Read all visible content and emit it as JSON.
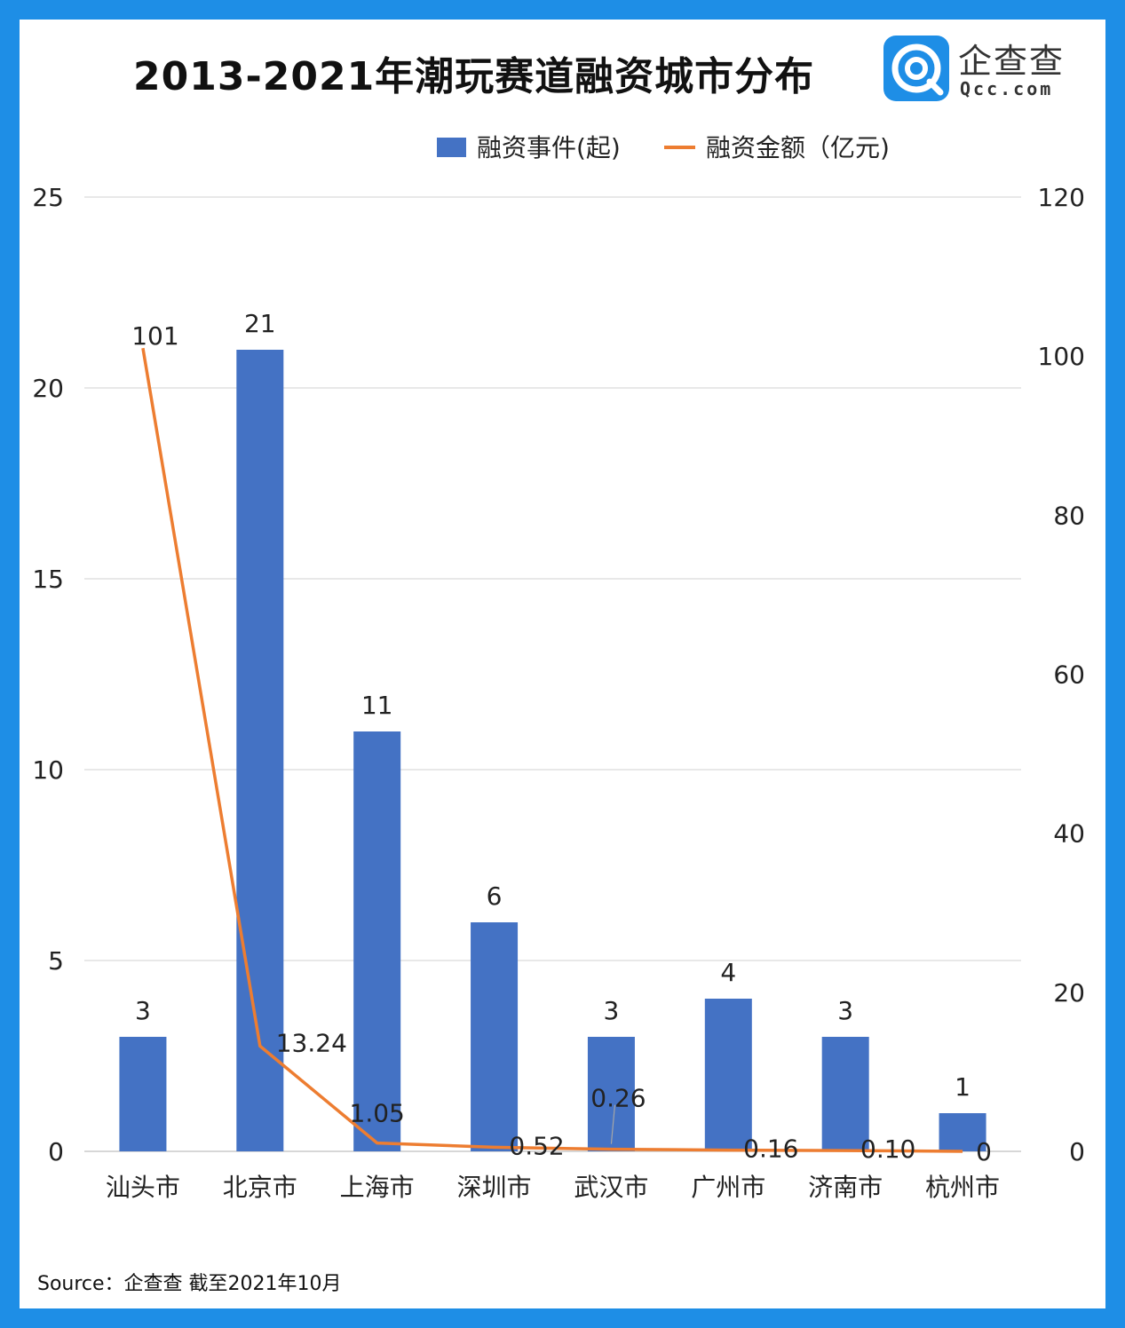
{
  "title": "2013-2021年潮玩赛道融资城市分布",
  "brand": {
    "name": "企查查",
    "domain": "Qcc.com",
    "color": "#1e8ee6"
  },
  "source": "Source：企查查 截至2021年10月",
  "chart_data": {
    "type": "bar",
    "categories": [
      "汕头市",
      "北京市",
      "上海市",
      "深圳市",
      "武汉市",
      "广州市",
      "济南市",
      "杭州市"
    ],
    "series": [
      {
        "name": "融资事件(起)",
        "kind": "bar",
        "axis": "left",
        "color": "#4472c4",
        "values": [
          3,
          21,
          11,
          6,
          3,
          4,
          3,
          1
        ],
        "labels": [
          "3",
          "21",
          "11",
          "6",
          "3",
          "4",
          "3",
          "1"
        ]
      },
      {
        "name": "融资金额（亿元)",
        "kind": "line",
        "axis": "right",
        "color": "#ed7d31",
        "values": [
          101,
          13.24,
          1.05,
          0.52,
          0.26,
          0.16,
          0.1,
          0
        ],
        "labels": [
          "101",
          "13.24",
          "1.05",
          "0.52",
          "0.26",
          "0.16",
          "0.10",
          "0"
        ]
      }
    ],
    "y_left": {
      "min": 0,
      "max": 25,
      "ticks": [
        "0",
        "5",
        "10",
        "15",
        "20",
        "25"
      ]
    },
    "y_right": {
      "min": 0,
      "max": 120,
      "ticks": [
        "0",
        "20",
        "40",
        "60",
        "80",
        "100",
        "120"
      ]
    },
    "grid": true,
    "legend": "top"
  }
}
